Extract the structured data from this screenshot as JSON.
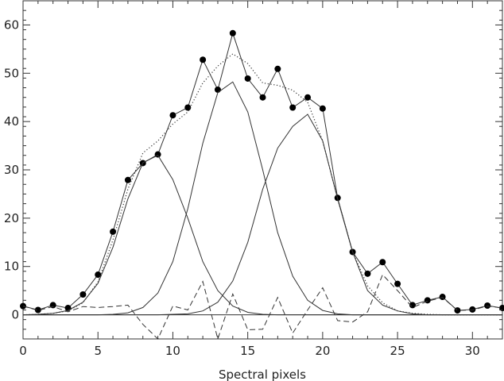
{
  "chart_data": {
    "type": "line",
    "title": "",
    "xlabel": "Spectral pixels",
    "ylabel": "",
    "xlim": [
      0,
      32
    ],
    "ylim": [
      -5,
      65
    ],
    "grid": false,
    "x_ticks": [
      0,
      5,
      10,
      15,
      20,
      25,
      30
    ],
    "y_ticks": [
      0,
      10,
      20,
      30,
      40,
      50,
      60
    ],
    "x_tick_labels": [
      "0",
      "5",
      "10",
      "15",
      "20",
      "25",
      "30"
    ],
    "y_tick_labels": [
      "0",
      "10",
      "20",
      "30",
      "40",
      "50",
      "60"
    ],
    "series": [
      {
        "style": "solid-markers",
        "x": [
          0,
          1,
          2,
          3,
          4,
          5,
          6,
          7,
          8,
          9,
          10,
          11,
          12,
          13,
          14,
          15,
          16,
          17,
          18,
          19,
          20,
          21,
          22,
          23,
          24,
          25,
          26,
          27,
          28,
          29,
          30,
          31,
          32
        ],
        "y": [
          1.8,
          1.0,
          2.0,
          1.4,
          4.2,
          8.3,
          17.2,
          27.9,
          31.4,
          33.2,
          41.3,
          42.9,
          52.8,
          46.6,
          58.3,
          48.9,
          45.0,
          50.9,
          42.9,
          45.0,
          42.7,
          24.2,
          13.0,
          8.5,
          10.9,
          6.4,
          2.0,
          3.0,
          3.7,
          0.9,
          1.1,
          1.9,
          1.4
        ]
      },
      {
        "style": "dotted",
        "x": [
          0,
          1,
          2,
          3,
          4,
          5,
          6,
          7,
          8,
          9,
          10,
          11,
          12,
          13,
          14,
          15,
          16,
          17,
          18,
          19,
          20,
          21,
          22,
          23,
          24,
          25,
          26,
          27,
          28,
          29,
          30,
          31,
          32
        ],
        "y": [
          0.0,
          0.1,
          0.3,
          0.8,
          2.5,
          6.8,
          15.5,
          26.0,
          33.5,
          36.0,
          39.5,
          42.0,
          48.0,
          51.5,
          54.0,
          52.0,
          48.0,
          47.5,
          46.5,
          44.0,
          36.0,
          24.0,
          13.0,
          6.0,
          2.5,
          0.8,
          0.3,
          0.1,
          0.0,
          0.0,
          0.0,
          0.0,
          0.0
        ]
      },
      {
        "style": "solid",
        "x": [
          0,
          1,
          2,
          3,
          4,
          5,
          6,
          7,
          8,
          9,
          10,
          11,
          12,
          13,
          14,
          15,
          16,
          17,
          18,
          19,
          20,
          21,
          22,
          23,
          24,
          25,
          26,
          27,
          28,
          29,
          30,
          31,
          32
        ],
        "y": [
          0.0,
          0.1,
          0.3,
          0.9,
          2.6,
          6.5,
          14.0,
          24.0,
          31.5,
          33.0,
          28.0,
          20.0,
          11.0,
          5.0,
          1.8,
          0.5,
          0.1,
          0.0,
          0.0,
          0.0,
          0.0,
          0.0,
          0.0,
          0.0,
          0.0,
          0.0,
          0.0,
          0.0,
          0.0,
          0.0,
          0.0,
          0.0,
          0.0
        ]
      },
      {
        "style": "solid",
        "x": [
          0,
          1,
          2,
          3,
          4,
          5,
          6,
          7,
          8,
          9,
          10,
          11,
          12,
          13,
          14,
          15,
          16,
          17,
          18,
          19,
          20,
          21,
          22,
          23,
          24,
          25,
          26,
          27,
          28,
          29,
          30,
          31,
          32
        ],
        "y": [
          0.0,
          0.0,
          0.0,
          0.0,
          0.0,
          0.0,
          0.1,
          0.4,
          1.5,
          4.5,
          11.0,
          22.0,
          35.5,
          46.0,
          48.2,
          42.0,
          30.0,
          17.0,
          8.0,
          3.0,
          0.9,
          0.2,
          0.0,
          0.0,
          0.0,
          0.0,
          0.0,
          0.0,
          0.0,
          0.0,
          0.0,
          0.0,
          0.0
        ]
      },
      {
        "style": "solid",
        "x": [
          0,
          1,
          2,
          3,
          4,
          5,
          6,
          7,
          8,
          9,
          10,
          11,
          12,
          13,
          14,
          15,
          16,
          17,
          18,
          19,
          20,
          21,
          22,
          23,
          24,
          25,
          26,
          27,
          28,
          29,
          30,
          31,
          32
        ],
        "y": [
          0.0,
          0.0,
          0.0,
          0.0,
          0.0,
          0.0,
          0.0,
          0.0,
          0.0,
          0.0,
          0.1,
          0.2,
          0.8,
          2.6,
          7.0,
          15.0,
          26.0,
          34.5,
          39.0,
          41.5,
          36.0,
          24.0,
          13.0,
          5.0,
          2.0,
          0.8,
          0.2,
          0.0,
          0.0,
          0.0,
          0.0,
          0.0,
          0.0
        ]
      },
      {
        "style": "dashed",
        "x": [
          0,
          1,
          2,
          3,
          4,
          5,
          6,
          7,
          8,
          9,
          10,
          11,
          12,
          13,
          14,
          15,
          16,
          17,
          18,
          19,
          20,
          21,
          22,
          23,
          24,
          25,
          26,
          27,
          28,
          29,
          30,
          31,
          32
        ],
        "y": [
          1.8,
          0.9,
          1.7,
          0.6,
          1.7,
          1.5,
          1.7,
          2.0,
          -2.0,
          -5.0,
          1.8,
          1.0,
          6.9,
          -5.0,
          4.3,
          -3.1,
          -3.0,
          3.6,
          -3.8,
          1.0,
          5.6,
          -1.2,
          -1.5,
          0.6,
          8.3,
          5.0,
          1.5,
          2.8,
          3.6,
          0.9,
          1.0,
          1.8,
          1.4
        ]
      }
    ]
  }
}
